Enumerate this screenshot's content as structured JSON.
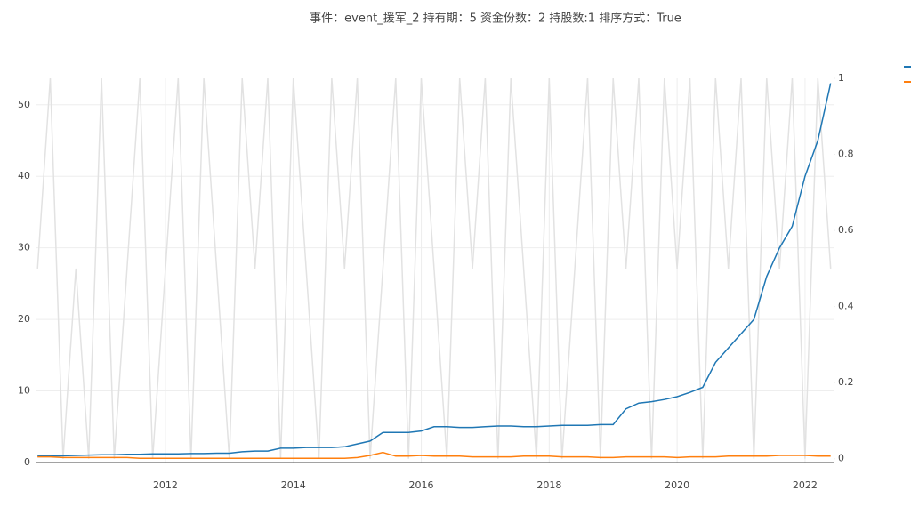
{
  "chart_data": {
    "type": "line",
    "title": "事件：event_援军_2 持有期：5 资金份数：2 持股数:1 排序方式：True",
    "x": [
      2010.0,
      2010.2,
      2010.4,
      2010.6,
      2010.8,
      2011.0,
      2011.2,
      2011.4,
      2011.6,
      2011.8,
      2012.0,
      2012.2,
      2012.4,
      2012.6,
      2012.8,
      2013.0,
      2013.2,
      2013.4,
      2013.6,
      2013.8,
      2014.0,
      2014.2,
      2014.4,
      2014.6,
      2014.8,
      2015.0,
      2015.2,
      2015.4,
      2015.6,
      2015.8,
      2016.0,
      2016.2,
      2016.4,
      2016.6,
      2016.8,
      2017.0,
      2017.2,
      2017.4,
      2017.6,
      2017.8,
      2018.0,
      2018.2,
      2018.4,
      2018.6,
      2018.8,
      2019.0,
      2019.2,
      2019.4,
      2019.6,
      2019.8,
      2020.0,
      2020.2,
      2020.4,
      2020.6,
      2020.8,
      2021.0,
      2021.2,
      2021.4,
      2021.6,
      2021.8,
      2022.0,
      2022.2,
      2022.4
    ],
    "series": [
      {
        "color": "#e2e2e2",
        "axis": "y2",
        "values": [
          0.5,
          1,
          0,
          0.5,
          0,
          1,
          0,
          0.5,
          1,
          0,
          0.5,
          1,
          0,
          1,
          0.5,
          0,
          1,
          0.5,
          1,
          0,
          1,
          0.5,
          0,
          1,
          0.5,
          1,
          0,
          0.5,
          1,
          0,
          1,
          0.5,
          0,
          1,
          0.5,
          1,
          0,
          1,
          0.5,
          0,
          1,
          0,
          0.5,
          1,
          0,
          1,
          0.5,
          1,
          0,
          1,
          0.5,
          1,
          0,
          1,
          0.5,
          1,
          0,
          1,
          0.5,
          1,
          0,
          1,
          0.5
        ]
      },
      {
        "color": "#1f77b4",
        "values": [
          0.9,
          0.9,
          0.95,
          1.0,
          1.05,
          1.1,
          1.1,
          1.15,
          1.15,
          1.2,
          1.2,
          1.2,
          1.25,
          1.25,
          1.3,
          1.3,
          1.5,
          1.6,
          1.6,
          2.0,
          2.0,
          2.1,
          2.1,
          2.1,
          2.2,
          2.6,
          3.0,
          4.2,
          4.2,
          4.2,
          4.4,
          5.0,
          5.0,
          4.9,
          4.9,
          5.0,
          5.1,
          5.1,
          5.0,
          5.0,
          5.1,
          5.2,
          5.2,
          5.2,
          5.3,
          5.3,
          7.5,
          8.3,
          8.5,
          8.8,
          9.2,
          9.8,
          10.5,
          14,
          16,
          18,
          20,
          26,
          30,
          33,
          40,
          45,
          53
        ]
      },
      {
        "color": "#ff7f0e",
        "values": [
          0.8,
          0.8,
          0.7,
          0.7,
          0.7,
          0.7,
          0.7,
          0.7,
          0.6,
          0.6,
          0.6,
          0.6,
          0.6,
          0.6,
          0.6,
          0.6,
          0.6,
          0.6,
          0.6,
          0.6,
          0.6,
          0.6,
          0.6,
          0.6,
          0.6,
          0.7,
          1.0,
          1.4,
          0.9,
          0.9,
          1.0,
          0.9,
          0.9,
          0.9,
          0.8,
          0.8,
          0.8,
          0.8,
          0.9,
          0.9,
          0.9,
          0.8,
          0.8,
          0.8,
          0.7,
          0.7,
          0.8,
          0.8,
          0.8,
          0.8,
          0.7,
          0.8,
          0.8,
          0.8,
          0.9,
          0.9,
          0.9,
          0.9,
          1.0,
          1.0,
          1.0,
          0.9,
          0.9
        ]
      }
    ],
    "xlim": [
      2009.97,
      2022.46
    ],
    "xticks": [
      2012,
      2014,
      2016,
      2018,
      2020,
      2022
    ],
    "ylim": [
      0,
      53.7
    ],
    "yticks": [
      0,
      10,
      20,
      30,
      40,
      50
    ],
    "y2lim": [
      -0.01,
      1
    ],
    "y2ticks": [
      0,
      0.2,
      0.4,
      0.6,
      0.8,
      1
    ],
    "grid": true
  }
}
